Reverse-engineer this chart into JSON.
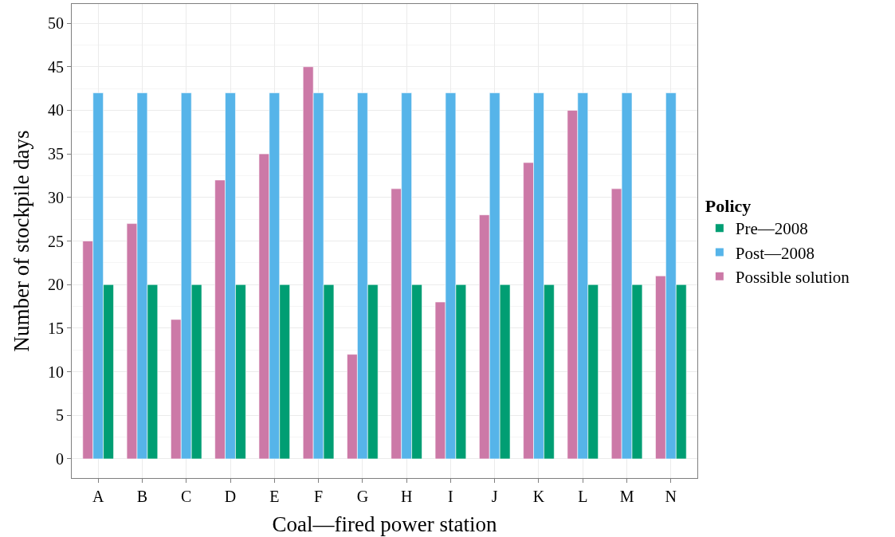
{
  "chart_data": {
    "type": "bar",
    "xlabel": "Coal—fired power station",
    "ylabel": "Number of stockpile days",
    "legend_title": "Policy",
    "categories": [
      "A",
      "B",
      "C",
      "D",
      "E",
      "F",
      "G",
      "H",
      "I",
      "J",
      "K",
      "L",
      "M",
      "N"
    ],
    "series": [
      {
        "name": "Possible solution",
        "color": "#cc79a7",
        "values": [
          25,
          27,
          16,
          32,
          35,
          45,
          12,
          31,
          18,
          28,
          34,
          40,
          31,
          21
        ]
      },
      {
        "name": "Post—2008",
        "color": "#56b4e9",
        "values": [
          42,
          42,
          42,
          42,
          42,
          42,
          42,
          42,
          42,
          42,
          42,
          42,
          42,
          42
        ]
      },
      {
        "name": "Pre—2008",
        "color": "#009e73",
        "values": [
          20,
          20,
          20,
          20,
          20,
          20,
          20,
          20,
          20,
          20,
          20,
          20,
          20,
          20
        ]
      }
    ],
    "ylim": [
      -2.2,
      52.2
    ],
    "yticks": [
      0,
      5,
      10,
      15,
      20,
      25,
      30,
      35,
      40,
      45,
      50
    ],
    "grid": true,
    "legend": "right"
  }
}
